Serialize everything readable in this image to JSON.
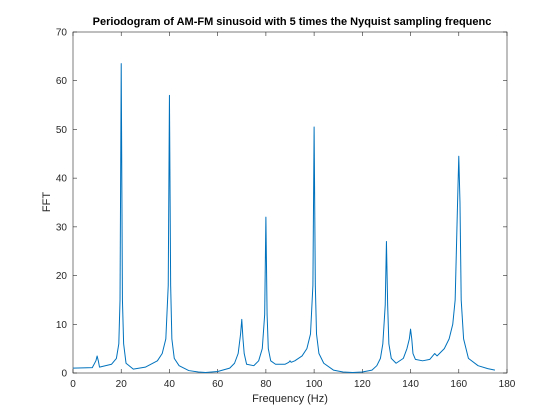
{
  "chart_data": {
    "type": "line",
    "title": "Periodogram of AM-FM sinusoid with 5 times the Nyquist sampling frequenc",
    "xlabel": "Frequency (Hz)",
    "ylabel": "FFT",
    "xlim": [
      0,
      180
    ],
    "ylim": [
      0,
      70
    ],
    "xticks": [
      0,
      20,
      40,
      60,
      80,
      100,
      120,
      140,
      160,
      180
    ],
    "yticks": [
      0,
      10,
      20,
      30,
      40,
      50,
      60,
      70
    ],
    "grid": false,
    "legend": "none",
    "series_color": "#0072BD",
    "series": [
      {
        "x": [
          0,
          8,
          9.5,
          10,
          10.5,
          11,
          16,
          18,
          19,
          19.5,
          20,
          20.5,
          21,
          22,
          25,
          30,
          35,
          37,
          38.5,
          39.5,
          40,
          40.5,
          41,
          42,
          44,
          48,
          52,
          55,
          60,
          65,
          67,
          68.5,
          69.5,
          70,
          70.5,
          71,
          72,
          75,
          77,
          78.5,
          79.5,
          80,
          80.5,
          81,
          82,
          84,
          88,
          89.5,
          90,
          90.5,
          92,
          95,
          97,
          98.5,
          99.5,
          100,
          100.5,
          101,
          102,
          104,
          108,
          112,
          116,
          120,
          124,
          126,
          127.5,
          128.5,
          129.5,
          130,
          130.5,
          131,
          132,
          134,
          137,
          138.5,
          139.5,
          140,
          140.5,
          141,
          142,
          145,
          148,
          150,
          151,
          152,
          154,
          156,
          157.5,
          158.5,
          159.5,
          160,
          160.5,
          161,
          162,
          164,
          168,
          172,
          175
        ],
        "y": [
          1,
          1.1,
          2.5,
          3.5,
          2.5,
          1.2,
          1.8,
          3,
          6,
          15,
          63.5,
          15,
          6,
          2,
          0.8,
          1.2,
          2.5,
          4,
          7,
          18,
          57,
          18,
          7,
          3,
          1.5,
          0.5,
          0.2,
          0.1,
          0.3,
          1,
          2,
          4,
          8,
          11,
          7,
          4,
          1.8,
          1.5,
          2.5,
          5,
          12,
          32,
          12,
          5,
          2.5,
          1.8,
          1.8,
          2.2,
          2.5,
          2.2,
          2.5,
          3.5,
          5,
          8,
          18,
          50.5,
          18,
          8,
          4,
          2,
          0.6,
          0.2,
          0.1,
          0.2,
          0.6,
          1.5,
          3,
          6,
          14,
          27,
          14,
          6,
          3,
          2,
          3,
          5,
          7,
          9,
          7,
          4,
          2.8,
          2.5,
          2.8,
          4,
          3.5,
          4,
          5,
          7,
          10,
          15,
          35,
          44.5,
          35,
          15,
          7,
          3,
          1.5,
          0.9,
          0.6
        ]
      }
    ]
  }
}
